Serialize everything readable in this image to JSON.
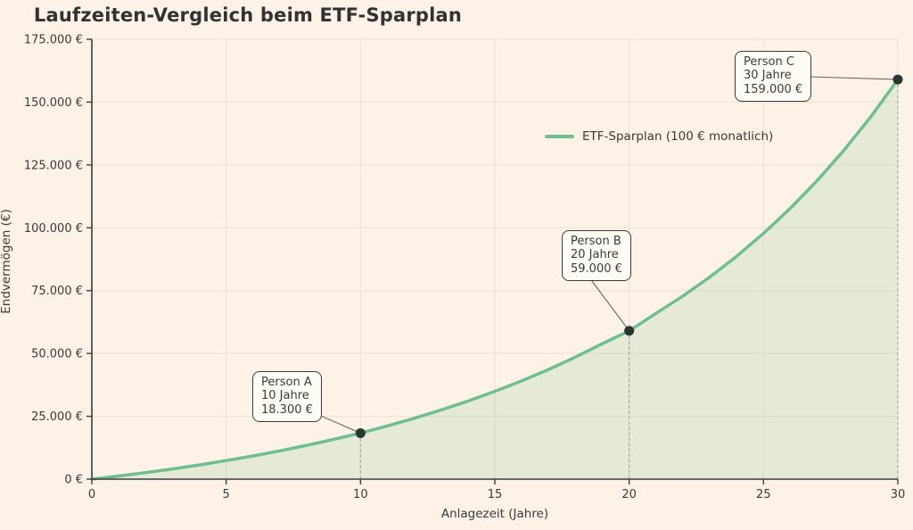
{
  "title": "Laufzeiten-Vergleich beim ETF-Sparplan",
  "chart_data": {
    "type": "area",
    "title": "Laufzeiten-Vergleich beim ETF-Sparplan",
    "xlabel": "Anlagezeit (Jahre)",
    "ylabel": "Endvermögen (€)",
    "xlim": [
      0,
      30
    ],
    "ylim": [
      0,
      175000
    ],
    "grid": true,
    "x_ticks": [
      0,
      5,
      10,
      15,
      20,
      25,
      30
    ],
    "x_tick_labels": [
      "0",
      "5",
      "10",
      "15",
      "20",
      "25",
      "30"
    ],
    "y_ticks": [
      0,
      25000,
      50000,
      75000,
      100000,
      125000,
      150000,
      175000
    ],
    "y_tick_labels": [
      "0 €",
      "25.000 €",
      "50.000 €",
      "75.000 €",
      "100.000 €",
      "125.000 €",
      "150.000 €",
      "175.000 €"
    ],
    "legend": {
      "label": "ETF-Sparplan (100 € monatlich)",
      "position": "inside upper right"
    },
    "series": [
      {
        "name": "ETF-Sparplan (100 € monatlich)",
        "x": [
          0,
          1,
          2,
          3,
          4,
          5,
          6,
          7,
          8,
          9,
          10,
          11,
          12,
          13,
          14,
          15,
          16,
          17,
          18,
          19,
          20,
          21,
          22,
          23,
          24,
          25,
          26,
          27,
          28,
          29,
          30
        ],
        "y": [
          0,
          1246,
          2596,
          4060,
          5647,
          7368,
          9233,
          11255,
          13447,
          15823,
          18300,
          21191,
          24219,
          27501,
          31059,
          34917,
          39098,
          43632,
          48546,
          53874,
          59000,
          65941,
          72830,
          80383,
          88671,
          97775,
          107783,
          118792,
          130914,
          144270,
          159000
        ]
      }
    ],
    "annotations": [
      {
        "label": "Person A",
        "duration": "10 Jahre",
        "amount": "18.300 €",
        "x": 10,
        "y": 18300
      },
      {
        "label": "Person B",
        "duration": "20 Jahre",
        "amount": "59.000 €",
        "x": 20,
        "y": 59000
      },
      {
        "label": "Person C",
        "duration": "30 Jahre",
        "amount": "159.000 €",
        "x": 30,
        "y": 159000
      }
    ]
  },
  "colors": {
    "background": "#fdf2e7",
    "line": "#6ebe91",
    "area_fill": "rgba(110,190,145,0.17)",
    "grid": "#eee3d5",
    "axis": "#3d3d3d",
    "text": "#3a3a3a",
    "title_text": "#323232",
    "annotation_bg": "#fefcf5",
    "annotation_border": "#3a3a3a",
    "point": "#293733",
    "drop_line": "#8a8a8a",
    "connector": "#666666"
  }
}
